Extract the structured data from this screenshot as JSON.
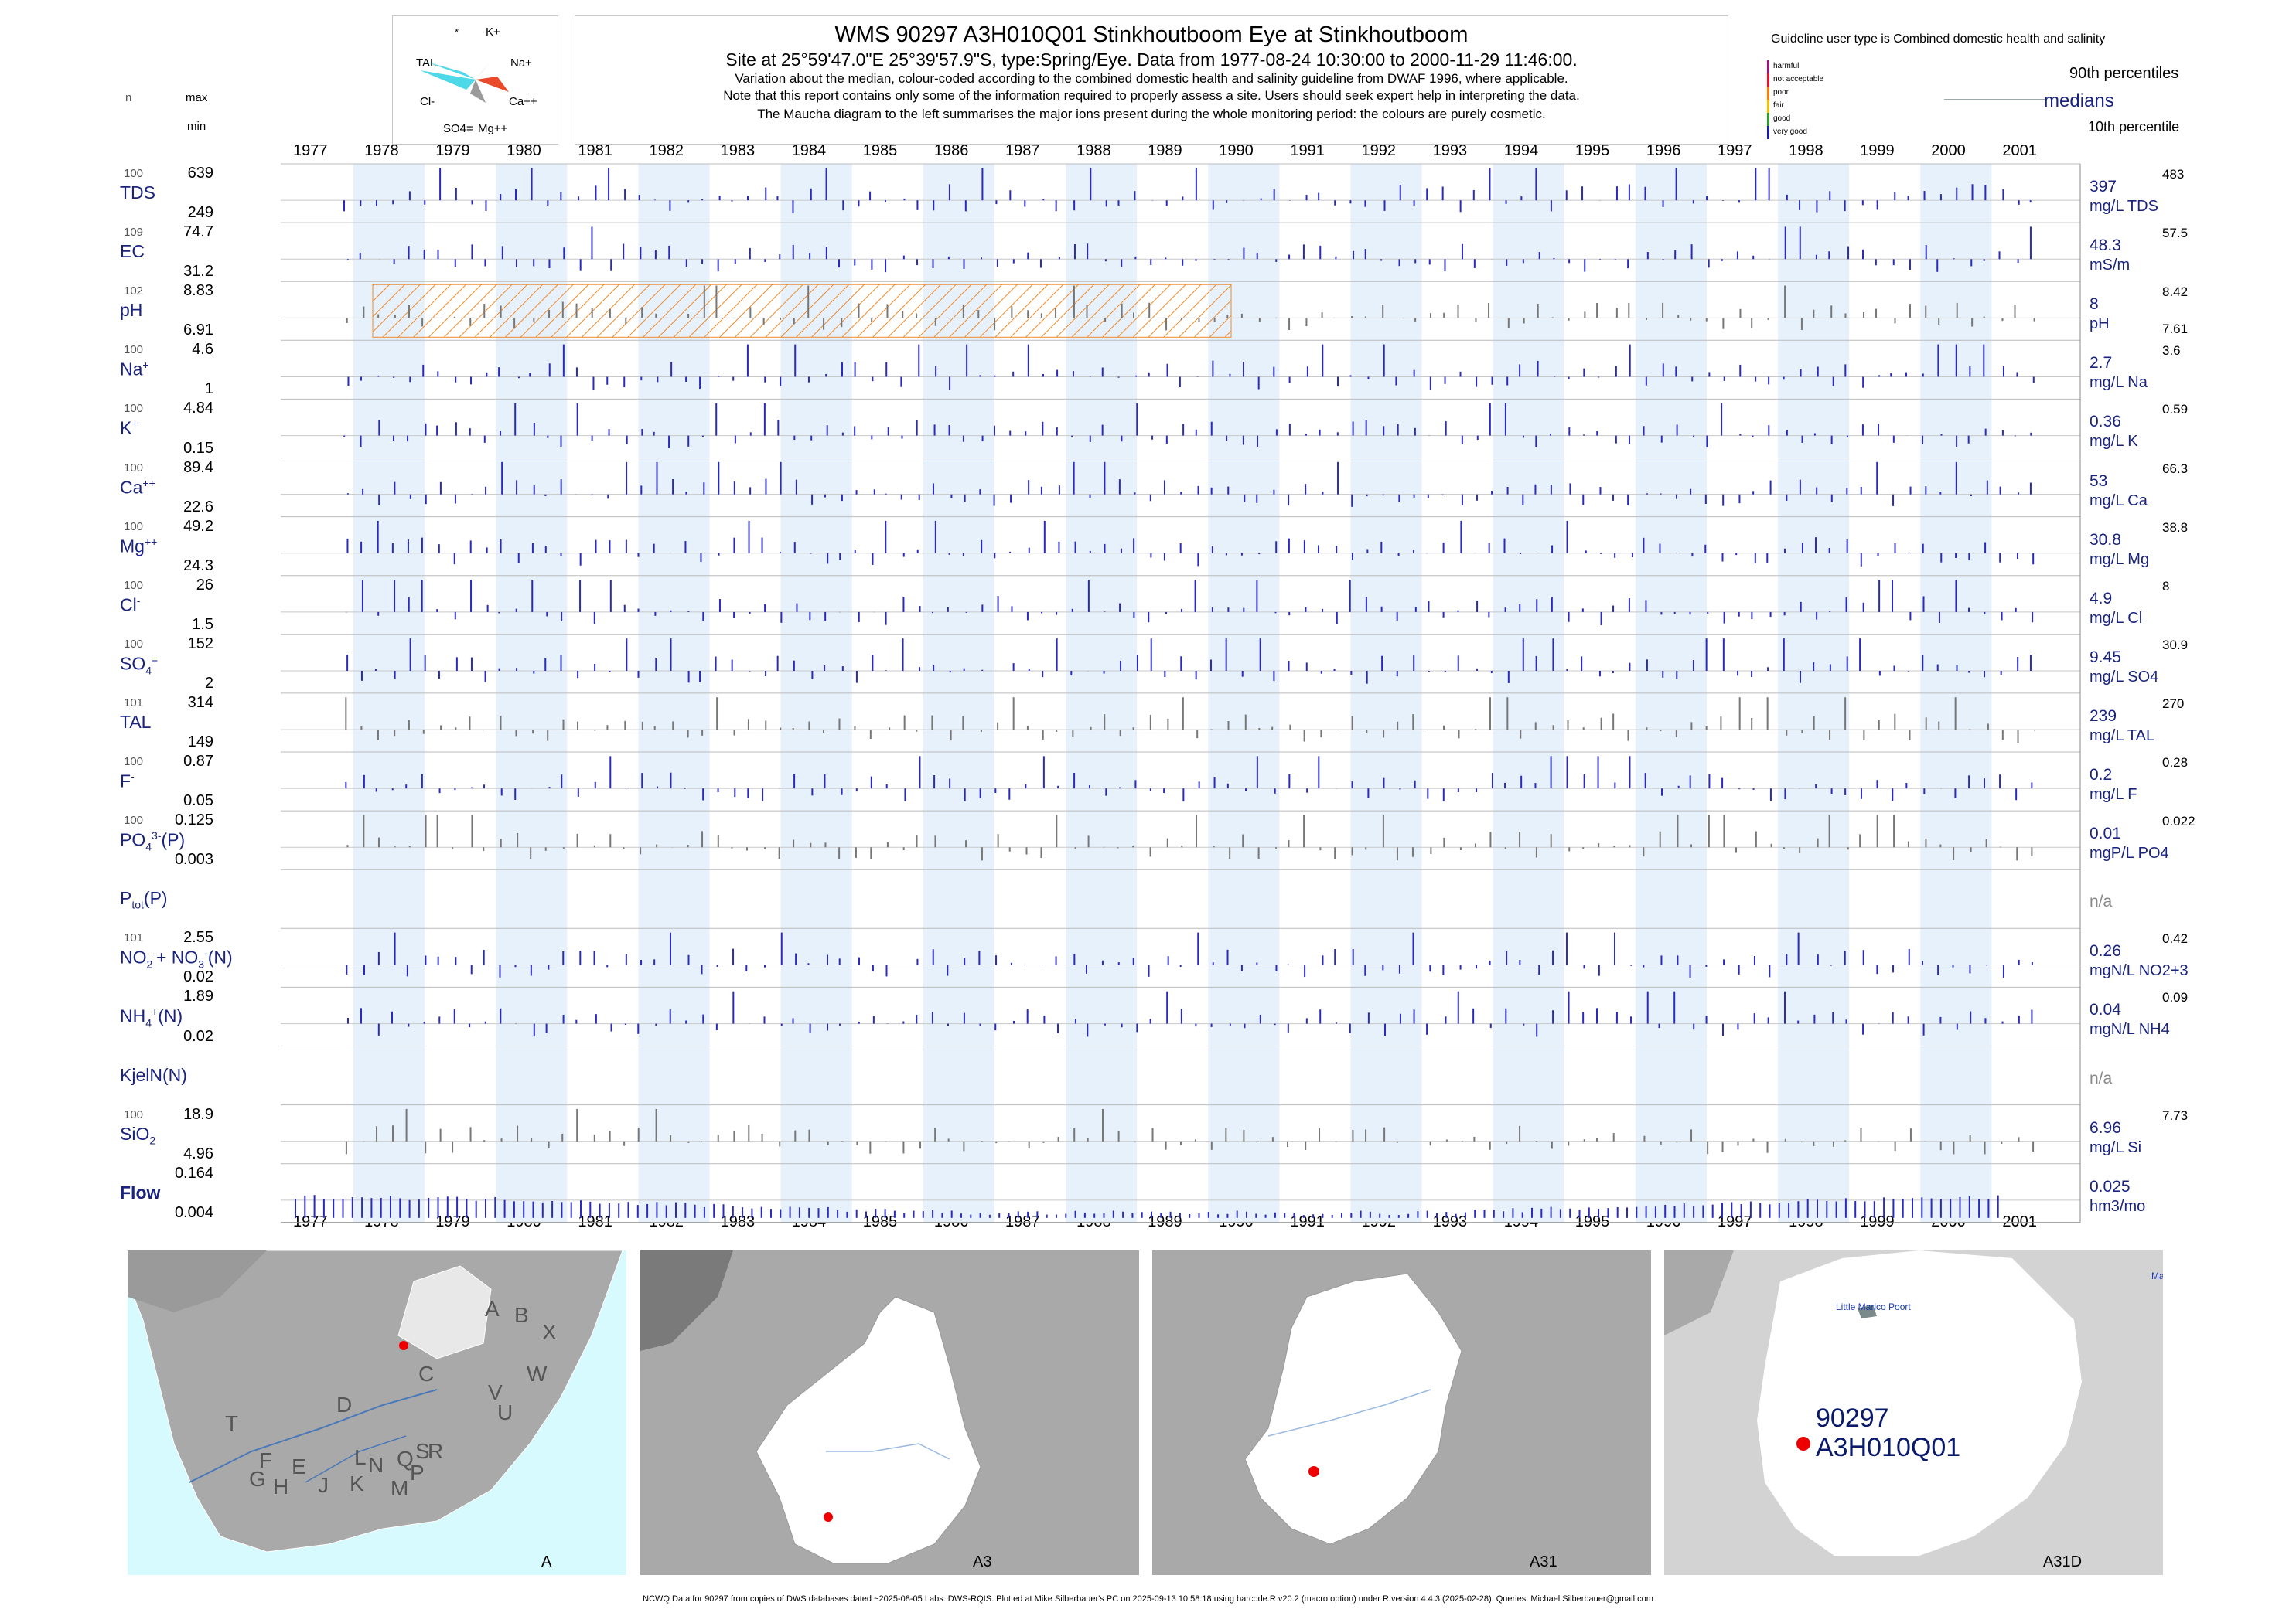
{
  "title": {
    "main": "WMS 90297 A3H010Q01 Stinkhoutboom Eye at Stinkhoutboom",
    "sub": "Site at 25°59'47.0\"E 25°39'57.9\"S, type:Spring/Eye.  Data from 1977-08-24 10:30:00 to 2000-11-29 11:46:00.",
    "note1": "Variation about the median,  colour-coded according to the combined domestic health and salinity guideline from DWAF 1996, where applicable.",
    "note2": "Note that this report contains only some of the information required to properly assess a site. Users should seek expert help in interpreting the data.",
    "note3": "The Maucha diagram to the left summarises the major ions present during the whole monitoring period: the colours are purely cosmetic."
  },
  "header_left": {
    "n": "n",
    "max": "max",
    "min": "min"
  },
  "guideline": {
    "title": "Guideline user type is Combined domestic health and salinity",
    "levels": [
      {
        "label": "harmful",
        "color": "#a0107a"
      },
      {
        "label": "not acceptable",
        "color": "#e8102a"
      },
      {
        "label": "poor",
        "color": "#ff7a00"
      },
      {
        "label": "fair",
        "color": "#f2c200"
      },
      {
        "label": "good",
        "color": "#2aa02a"
      },
      {
        "label": "very good",
        "color": "#1a1ab0"
      }
    ],
    "p90": "90th percentiles",
    "medians": "medians",
    "p10": "10th percentile"
  },
  "maucha": {
    "labels": [
      "*",
      "K+",
      "TAL",
      "Na+",
      "Cl-",
      "Ca++",
      "SO4=",
      "Mg++"
    ]
  },
  "chart_data": {
    "type": "bar",
    "x_range": [
      "1977",
      "2001"
    ],
    "years": [
      "1977",
      "1978",
      "1979",
      "1980",
      "1981",
      "1982",
      "1983",
      "1984",
      "1985",
      "1986",
      "1987",
      "1988",
      "1989",
      "1990",
      "1991",
      "1992",
      "1993",
      "1994",
      "1995",
      "1996",
      "1997",
      "1998",
      "1999",
      "2000",
      "2001"
    ],
    "hatched_period_for_pH": [
      "1977-10",
      "1989-12"
    ],
    "panels": [
      {
        "param": "TDS",
        "sup": "",
        "sub": "",
        "n": "100",
        "max": "639",
        "min": "249",
        "median": "397",
        "p90": "483",
        "p10": "",
        "unit": "mg/L TDS"
      },
      {
        "param": "EC",
        "sup": "",
        "sub": "",
        "n": "109",
        "max": "74.7",
        "min": "31.2",
        "median": "48.3",
        "p90": "57.5",
        "p10": "",
        "unit": "mS/m"
      },
      {
        "param": "pH",
        "sup": "",
        "sub": "",
        "n": "102",
        "max": "8.83",
        "min": "6.91",
        "median": "8",
        "p90": "8.42",
        "p10": "7.61",
        "unit": "pH"
      },
      {
        "param": "Na",
        "sup": "+",
        "sub": "",
        "n": "100",
        "max": "4.6",
        "min": "1",
        "median": "2.7",
        "p90": "3.6",
        "p10": "",
        "unit": "mg/L Na"
      },
      {
        "param": "K",
        "sup": "+",
        "sub": "",
        "n": "100",
        "max": "4.84",
        "min": "0.15",
        "median": "0.36",
        "p90": "0.59",
        "p10": "",
        "unit": "mg/L K"
      },
      {
        "param": "Ca",
        "sup": "++",
        "sub": "",
        "n": "100",
        "max": "89.4",
        "min": "22.6",
        "median": "53",
        "p90": "66.3",
        "p10": "",
        "unit": "mg/L Ca"
      },
      {
        "param": "Mg",
        "sup": "++",
        "sub": "",
        "n": "100",
        "max": "49.2",
        "min": "24.3",
        "median": "30.8",
        "p90": "38.8",
        "p10": "",
        "unit": "mg/L Mg"
      },
      {
        "param": "Cl",
        "sup": "-",
        "sub": "",
        "n": "100",
        "max": "26",
        "min": "1.5",
        "median": "4.9",
        "p90": "8",
        "p10": "",
        "unit": "mg/L Cl"
      },
      {
        "param": "SO",
        "sup": "=",
        "sub": "4",
        "n": "100",
        "max": "152",
        "min": "2",
        "median": "9.45",
        "p90": "30.9",
        "p10": "",
        "unit": "mg/L SO4"
      },
      {
        "param": "TAL",
        "sup": "",
        "sub": "",
        "n": "101",
        "max": "314",
        "min": "149",
        "median": "239",
        "p90": "270",
        "p10": "",
        "unit": "mg/L TAL"
      },
      {
        "param": "F",
        "sup": "-",
        "sub": "",
        "n": "100",
        "max": "0.87",
        "min": "0.05",
        "median": "0.2",
        "p90": "0.28",
        "p10": "",
        "unit": "mg/L F"
      },
      {
        "param": "PO",
        "sup": "3-",
        "sub": "4",
        "suffix": "(P)",
        "n": "100",
        "max": "0.125",
        "min": "0.003",
        "median": "0.01",
        "p90": "0.022",
        "p10": "",
        "unit": "mgP/L PO4"
      },
      {
        "param": "P",
        "sup": "",
        "sub": "tot",
        "suffix": "(P)",
        "n": "",
        "max": "",
        "min": "",
        "median": "",
        "p90": "",
        "p10": "",
        "unit": "",
        "na": "n/a"
      },
      {
        "param": "NO",
        "sup": "-",
        "sub": "2",
        "suffix": "+ NO",
        "sup2": "-",
        "sub2": "3",
        "suffix2": "(N)",
        "n": "101",
        "max": "2.55",
        "min": "0.02",
        "median": "0.26",
        "p90": "0.42",
        "p10": "",
        "unit": "mgN/L NO2+3"
      },
      {
        "param": "NH",
        "sup": "+",
        "sub": "4",
        "suffix": "(N)",
        "n": "",
        "max": "1.89",
        "min": "0.02",
        "median": "0.04",
        "p90": "0.09",
        "p10": "",
        "unit": "mgN/L NH4"
      },
      {
        "param": "KjelN(N)",
        "sup": "",
        "sub": "",
        "n": "",
        "max": "",
        "min": "",
        "median": "",
        "p90": "",
        "p10": "",
        "unit": "",
        "na": "n/a"
      },
      {
        "param": "SiO",
        "sup": "",
        "sub": "2",
        "n": "100",
        "max": "18.9",
        "min": "4.96",
        "median": "6.96",
        "p90": "7.73",
        "p10": "",
        "unit": "mg/L Si"
      },
      {
        "param": "Flow",
        "sup": "",
        "sub": "",
        "n": "",
        "max": "0.164",
        "min": "0.004",
        "median": "0.025",
        "p90": "",
        "p10": "",
        "unit": "hm3/mo",
        "bold": true
      }
    ]
  },
  "maps": [
    {
      "label": "A",
      "letters": [
        "A",
        "B",
        "X",
        "W",
        "C",
        "V",
        "U",
        "D",
        "T",
        "F",
        "E",
        "G",
        "H",
        "J",
        "K",
        "L",
        "M",
        "N",
        "P",
        "Q",
        "R",
        "S"
      ]
    },
    {
      "label": "A3"
    },
    {
      "label": "A31"
    },
    {
      "label": "A31D",
      "site_id": "90297",
      "site_code": "A3H010Q01",
      "place": "Little Marico Poort",
      "corner_text": "Ma"
    }
  ],
  "footer": "NCWQ Data for 90297 from copies of DWS databases dated ~2025-08-05 Labs: DWS-RQIS. Plotted at Mike Silberbauer's PC on 2025-09-13 10:58:18 using barcode.R v20.2 (macro option) under R version 4.4.3 (2025-02-28). Queries: Michael.Silberbauer@gmail.com"
}
